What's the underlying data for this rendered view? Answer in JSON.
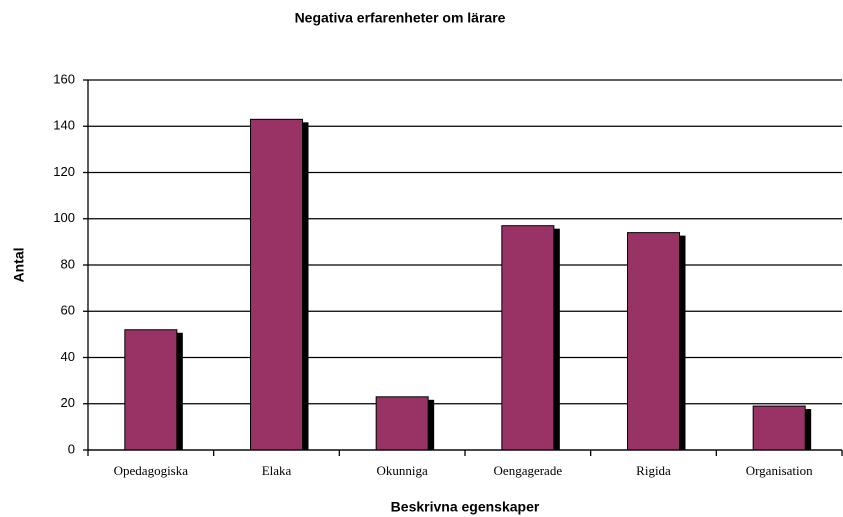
{
  "chart_data": {
    "type": "bar",
    "title": "Negativa erfarenheter om lärare",
    "x_label": "Beskrivna egenskaper",
    "y_label": "Antal",
    "categories": [
      "Opedagogiska",
      "Elaka",
      "Okunniga",
      "Oengagerade",
      "Rigida",
      "Organisation"
    ],
    "values": [
      52,
      143,
      23,
      97,
      94,
      19
    ],
    "color": "#993366",
    "ylim": [
      0,
      160
    ],
    "yticks": [
      0,
      20,
      40,
      60,
      80,
      100,
      120,
      140,
      160
    ],
    "grid": true
  }
}
